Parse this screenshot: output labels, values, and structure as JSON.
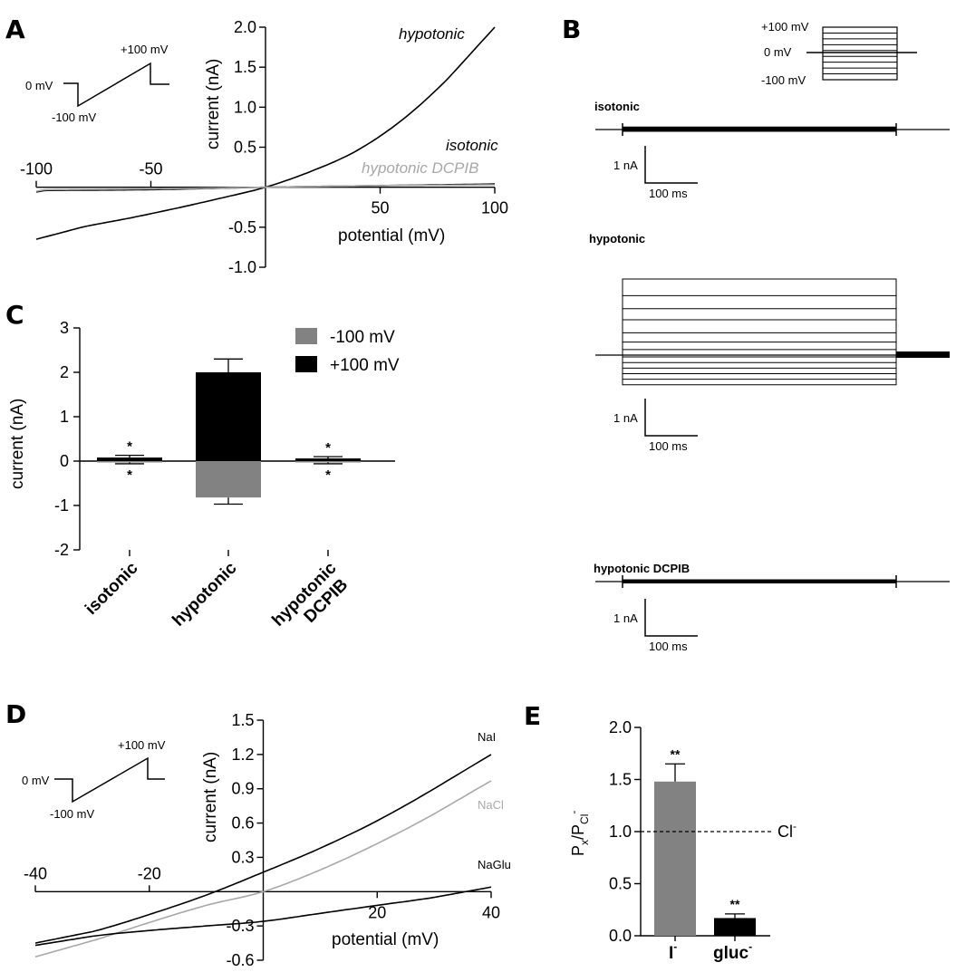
{
  "panels": {
    "a": "A",
    "b": "B",
    "c": "C",
    "d": "D",
    "e": "E"
  },
  "protocol_ramp": {
    "top": "+100 mV",
    "hold": "0 mV",
    "bottom": "-100 mV"
  },
  "protocol_ramp_d": {
    "top": "+100 mV",
    "hold": "0 mV",
    "bottom": "-100 mV"
  },
  "protocol_step": {
    "top": "+100 mV",
    "hold": "0 mV",
    "bottom": "-100 mV"
  },
  "scale_bars": {
    "current": "1 nA",
    "time": "100 ms"
  },
  "traces": [
    {
      "title": "isotonic",
      "steps_nA": [
        0.08,
        -0.06
      ]
    },
    {
      "title": "hypotonic",
      "steps_nA": [
        2.05,
        1.6,
        1.25,
        0.95,
        0.6,
        0.35,
        0.15,
        -0.05,
        -0.2,
        -0.35,
        -0.5,
        -0.65,
        -0.8
      ]
    },
    {
      "title": "hypotonic DCPIB",
      "steps_nA": [
        0.06,
        -0.05
      ]
    }
  ],
  "colors": {
    "black": "#000000",
    "gray": "#828282",
    "light_gray": "#a8a8a8"
  },
  "chart_data": [
    {
      "id": "A",
      "type": "line",
      "xlabel": "potential (mV)",
      "ylabel": "current (nA)",
      "xlim": [
        -100,
        100
      ],
      "ylim": [
        -1.0,
        2.0
      ],
      "xticks": [
        -100,
        -50,
        50,
        100
      ],
      "yticks": [
        -1.0,
        -0.5,
        0.5,
        1.0,
        1.5,
        2.0
      ],
      "xtick_labels": [
        "-100",
        "-50",
        "50",
        "100"
      ],
      "ytick_labels": [
        "-1.0",
        "-0.5",
        "0.5",
        "1.0",
        "1.5",
        "2.0"
      ],
      "series": [
        {
          "name": "hypotonic",
          "color": "#000000",
          "x": [
            -100,
            -80,
            -60,
            -40,
            -20,
            0,
            20,
            40,
            60,
            80,
            100
          ],
          "y": [
            -0.65,
            -0.5,
            -0.39,
            -0.27,
            -0.14,
            0.0,
            0.2,
            0.46,
            0.85,
            1.37,
            2.0
          ]
        },
        {
          "name": "isotonic",
          "color": "#000000",
          "x": [
            -100,
            -98,
            -96,
            -50,
            0,
            50,
            100
          ],
          "y": [
            -0.06,
            -0.05,
            -0.04,
            -0.03,
            0.0,
            0.02,
            0.04
          ]
        },
        {
          "name": "hypotonic DCPIB",
          "color": "#a8a8a8",
          "x": [
            -100,
            -98,
            -96,
            -50,
            0,
            50,
            100
          ],
          "y": [
            -0.05,
            -0.04,
            -0.03,
            -0.02,
            0.0,
            0.02,
            0.03
          ]
        }
      ]
    },
    {
      "id": "C",
      "type": "bar",
      "ylabel": "current (nA)",
      "ylim": [
        -2,
        3
      ],
      "yticks": [
        -2,
        -1,
        0,
        1,
        2,
        3
      ],
      "ytick_labels": [
        "-2",
        "-1",
        "0",
        "1",
        "2",
        "3"
      ],
      "categories": [
        "isotonic",
        "hypotonic",
        "hypotonic DCPIB"
      ],
      "series": [
        {
          "name": "-100 mV",
          "color": "#828282",
          "values": [
            -0.03,
            -0.82,
            -0.03
          ],
          "errors": [
            0.03,
            0.15,
            0.03
          ]
        },
        {
          "name": "+100 mV",
          "color": "#000000",
          "values": [
            0.08,
            2.0,
            0.06
          ],
          "errors": [
            0.05,
            0.3,
            0.04
          ]
        }
      ],
      "annotations": [
        "*",
        "",
        "*"
      ]
    },
    {
      "id": "D",
      "type": "line",
      "xlabel": "potential (mV)",
      "ylabel": "current (nA)",
      "xlim": [
        -40,
        40
      ],
      "ylim": [
        -0.6,
        1.5
      ],
      "xticks": [
        -40,
        -20,
        20,
        40
      ],
      "yticks": [
        -0.6,
        -0.3,
        0.3,
        0.6,
        0.9,
        1.2,
        1.5
      ],
      "xtick_labels": [
        "-40",
        "-20",
        "20",
        "40"
      ],
      "ytick_labels": [
        "-0.6",
        "-0.3",
        "0.3",
        "0.6",
        "0.9",
        "1.2",
        "1.5"
      ],
      "series": [
        {
          "name": "NaI",
          "color": "#000000",
          "x": [
            -40,
            -30,
            -20,
            -10,
            0,
            10,
            20,
            30,
            40
          ],
          "y": [
            -0.45,
            -0.35,
            -0.2,
            -0.03,
            0.17,
            0.38,
            0.62,
            0.9,
            1.2
          ]
        },
        {
          "name": "NaCl",
          "color": "#a8a8a8",
          "x": [
            -40,
            -30,
            -20,
            -10,
            0,
            10,
            20,
            30,
            40
          ],
          "y": [
            -0.57,
            -0.43,
            -0.27,
            -0.12,
            0.0,
            0.19,
            0.42,
            0.68,
            0.97
          ]
        },
        {
          "name": "NaGlu",
          "color": "#000000",
          "x": [
            -40,
            -30,
            -20,
            -10,
            0,
            10,
            20,
            30,
            40
          ],
          "y": [
            -0.47,
            -0.39,
            -0.34,
            -0.3,
            -0.26,
            -0.19,
            -0.12,
            -0.05,
            0.04
          ]
        }
      ]
    },
    {
      "id": "E",
      "type": "bar",
      "ylabel": "P_x/P_Cl-",
      "ylim": [
        0,
        2.0
      ],
      "yticks": [
        0.0,
        0.5,
        1.0,
        1.5,
        2.0
      ],
      "ytick_labels": [
        "0.0",
        "0.5",
        "1.0",
        "1.5",
        "2.0"
      ],
      "categories": [
        "I-",
        "gluc-"
      ],
      "values": [
        1.48,
        0.17
      ],
      "errors": [
        0.17,
        0.04
      ],
      "colors": [
        "#828282",
        "#000000"
      ],
      "annotations": [
        "**",
        "**"
      ],
      "reference": {
        "value": 1.0,
        "label": "Cl-"
      }
    }
  ]
}
